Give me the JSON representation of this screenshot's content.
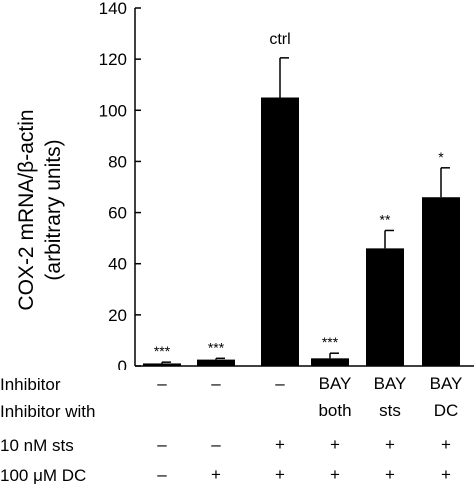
{
  "chart_data": {
    "type": "bar",
    "ylabel": "COX-2 mRNA/β-actin",
    "ylabel_sub": "(arbitrary units)",
    "ylim": [
      0,
      140
    ],
    "yticks": [
      "0",
      "20",
      "40",
      "60",
      "80",
      "100",
      "120",
      "140"
    ],
    "values": [
      1,
      2.5,
      105,
      3,
      46,
      66
    ],
    "errors": [
      0.5,
      0.5,
      15.5,
      2,
      7,
      11.5
    ],
    "annotations": [
      "***",
      "***",
      "ctrl",
      "***",
      "**",
      "*"
    ],
    "bar_color": "#000000",
    "grid": false
  },
  "conditions": {
    "rows": [
      {
        "label": "Inhibitor",
        "cells": [
          "–",
          "–",
          "–",
          "BAY",
          "BAY",
          "BAY"
        ]
      },
      {
        "label": "Inhibitor with",
        "cells": [
          "",
          "",
          "",
          "both",
          "sts",
          "DC"
        ]
      },
      {
        "label": "10 nM sts",
        "cells": [
          "–",
          "–",
          "+",
          "+",
          "+",
          "+"
        ]
      },
      {
        "label": "100 μM DC",
        "cells": [
          "–",
          "+",
          "+",
          "+",
          "+",
          "+"
        ]
      }
    ]
  }
}
